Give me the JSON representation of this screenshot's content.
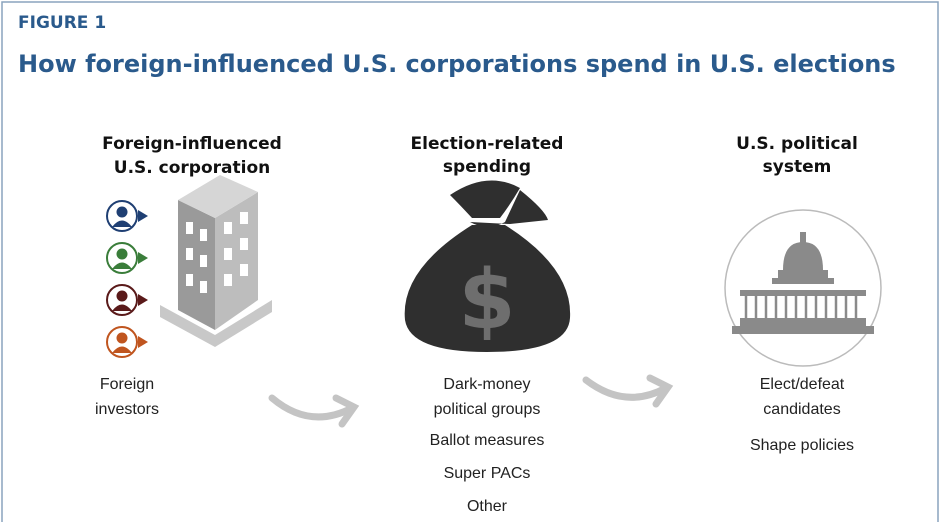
{
  "figure_label": "FIGURE 1",
  "title": "How foreign-influenced U.S. corporations spend in U.S. elections",
  "columns": [
    {
      "heading_lines": [
        "Foreign-influenced",
        "U.S. corporation"
      ],
      "items": [
        [
          "Foreign",
          "investors"
        ]
      ]
    },
    {
      "heading_lines": [
        "Election-related",
        "spending"
      ],
      "items": [
        [
          "Dark-money",
          "political groups"
        ],
        [
          "Ballot measures"
        ],
        [
          "Super PACs"
        ],
        [
          "Other"
        ]
      ]
    },
    {
      "heading_lines": [
        "U.S. political",
        "system"
      ],
      "items": [
        [
          "Elect/defeat",
          "candidates"
        ],
        [
          "Shape policies"
        ]
      ]
    }
  ]
}
